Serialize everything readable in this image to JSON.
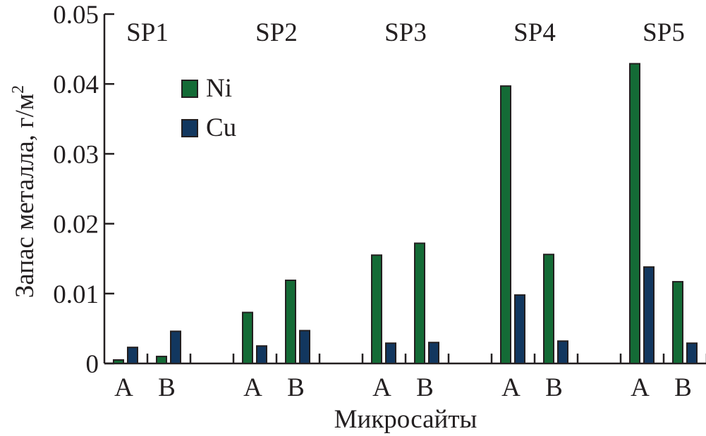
{
  "chart_data": {
    "type": "bar",
    "title": "",
    "xlabel": "Микросайты",
    "ylabel": "Запас металла, г/м",
    "ylabel_superscript": "2",
    "ylim": [
      0,
      0.05
    ],
    "yticks": [
      "0",
      "0.01",
      "0.02",
      "0.03",
      "0.04",
      "0.05"
    ],
    "grid": false,
    "legend_position": "top-left",
    "groups": [
      "SP1",
      "SP2",
      "SP3",
      "SP4",
      "SP5"
    ],
    "subcategories": [
      "A",
      "B"
    ],
    "series": [
      {
        "name": "Ni",
        "color": "#146b36",
        "values": [
          [
            0.0005,
            0.001
          ],
          [
            0.0073,
            0.0119
          ],
          [
            0.0155,
            0.0172
          ],
          [
            0.0397,
            0.0156
          ],
          [
            0.0429,
            0.0117
          ]
        ]
      },
      {
        "name": "Cu",
        "color": "#12375f",
        "values": [
          [
            0.0023,
            0.0046
          ],
          [
            0.0025,
            0.0047
          ],
          [
            0.0029,
            0.003
          ],
          [
            0.0098,
            0.0032
          ],
          [
            0.0138,
            0.0029
          ]
        ]
      }
    ]
  }
}
